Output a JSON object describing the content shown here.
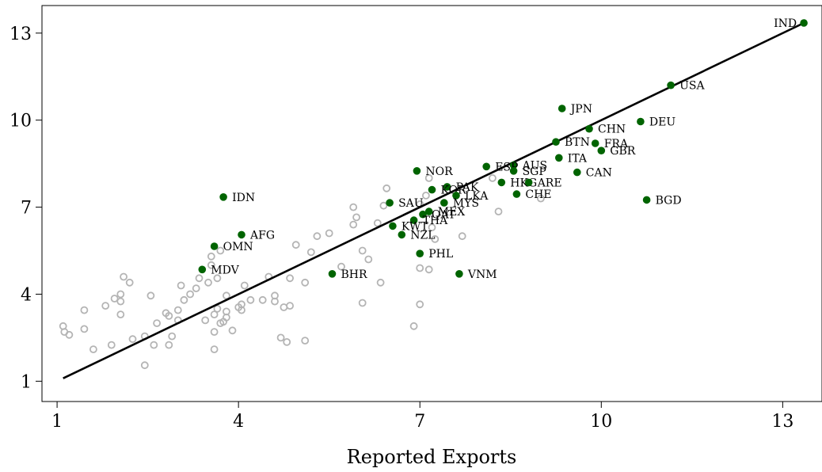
{
  "chart_data": {
    "type": "scatter",
    "title": "",
    "xlabel": "Reported Exports",
    "ylabel": "",
    "xlim": [
      0.75,
      13.65
    ],
    "ylim": [
      0.3,
      13.95
    ],
    "xticks": [
      1,
      4,
      7,
      10,
      13
    ],
    "yticks": [
      1,
      4,
      7,
      10,
      13
    ],
    "grid": false,
    "colors": {
      "highlight": "#006400",
      "background_points": "#b4b4b4",
      "fit_line": "#000000"
    },
    "fit_line": {
      "x": [
        1.1,
        13.35
      ],
      "y": [
        1.1,
        13.35
      ]
    },
    "highlighted": [
      {
        "label": "IND",
        "x": 13.35,
        "y": 13.35,
        "label_pos": "left"
      },
      {
        "label": "USA",
        "x": 11.15,
        "y": 11.2
      },
      {
        "label": "JPN",
        "x": 9.35,
        "y": 10.4
      },
      {
        "label": "DEU",
        "x": 10.65,
        "y": 9.95
      },
      {
        "label": "CHN",
        "x": 9.8,
        "y": 9.7
      },
      {
        "label": "BTN",
        "x": 9.25,
        "y": 9.25
      },
      {
        "label": "FRA",
        "x": 9.9,
        "y": 9.2
      },
      {
        "label": "GBR",
        "x": 10.0,
        "y": 8.95
      },
      {
        "label": "ITA",
        "x": 9.3,
        "y": 8.7
      },
      {
        "label": "AUS",
        "x": 8.55,
        "y": 8.45
      },
      {
        "label": "ESP",
        "x": 8.1,
        "y": 8.4
      },
      {
        "label": "SGP",
        "x": 8.55,
        "y": 8.25
      },
      {
        "label": "CAN",
        "x": 9.6,
        "y": 8.2
      },
      {
        "label": "NOR",
        "x": 6.95,
        "y": 8.25
      },
      {
        "label": "HKG",
        "x": 8.35,
        "y": 7.85
      },
      {
        "label": "ARE",
        "x": 8.8,
        "y": 7.85
      },
      {
        "label": "CHE",
        "x": 8.6,
        "y": 7.45
      },
      {
        "label": "BGD",
        "x": 10.75,
        "y": 7.25
      },
      {
        "label": "PAK",
        "x": 7.45,
        "y": 7.7
      },
      {
        "label": "KOR",
        "x": 7.2,
        "y": 7.6
      },
      {
        "label": "LKA",
        "x": 7.6,
        "y": 7.4
      },
      {
        "label": "SAU",
        "x": 6.5,
        "y": 7.15
      },
      {
        "label": "MYS",
        "x": 7.4,
        "y": 7.15
      },
      {
        "label": "MEX",
        "x": 7.15,
        "y": 6.85
      },
      {
        "label": "QAT",
        "x": 7.05,
        "y": 6.75
      },
      {
        "label": "THA",
        "x": 6.9,
        "y": 6.55
      },
      {
        "label": "KWT",
        "x": 6.55,
        "y": 6.35
      },
      {
        "label": "NZL",
        "x": 6.7,
        "y": 6.05
      },
      {
        "label": "IDN",
        "x": 3.75,
        "y": 7.35
      },
      {
        "label": "AFG",
        "x": 4.05,
        "y": 6.05
      },
      {
        "label": "OMN",
        "x": 3.6,
        "y": 5.65
      },
      {
        "label": "MDV",
        "x": 3.4,
        "y": 4.85
      },
      {
        "label": "PHL",
        "x": 7.0,
        "y": 5.4
      },
      {
        "label": "BHR",
        "x": 5.55,
        "y": 4.7
      },
      {
        "label": "VNM",
        "x": 7.65,
        "y": 4.7
      }
    ],
    "others": [
      [
        1.1,
        2.9
      ],
      [
        1.12,
        2.7
      ],
      [
        1.2,
        2.6
      ],
      [
        1.45,
        3.45
      ],
      [
        1.45,
        2.8
      ],
      [
        1.6,
        2.1
      ],
      [
        1.8,
        3.6
      ],
      [
        1.9,
        2.25
      ],
      [
        1.95,
        3.85
      ],
      [
        2.05,
        4.0
      ],
      [
        2.05,
        3.75
      ],
      [
        2.05,
        3.3
      ],
      [
        2.1,
        4.6
      ],
      [
        2.2,
        4.4
      ],
      [
        2.25,
        2.45
      ],
      [
        2.45,
        2.55
      ],
      [
        2.45,
        1.55
      ],
      [
        2.55,
        3.95
      ],
      [
        2.6,
        2.25
      ],
      [
        2.65,
        3.0
      ],
      [
        2.8,
        3.35
      ],
      [
        2.85,
        3.25
      ],
      [
        2.85,
        2.25
      ],
      [
        2.9,
        2.55
      ],
      [
        3.0,
        3.1
      ],
      [
        3.0,
        3.45
      ],
      [
        3.05,
        4.3
      ],
      [
        3.1,
        3.8
      ],
      [
        3.2,
        4.0
      ],
      [
        3.3,
        4.2
      ],
      [
        3.35,
        4.55
      ],
      [
        3.45,
        3.1
      ],
      [
        3.5,
        4.4
      ],
      [
        3.55,
        5.3
      ],
      [
        3.55,
        5.0
      ],
      [
        3.6,
        2.1
      ],
      [
        3.6,
        3.3
      ],
      [
        3.6,
        2.7
      ],
      [
        3.65,
        3.5
      ],
      [
        3.65,
        4.55
      ],
      [
        3.7,
        3.0
      ],
      [
        3.7,
        5.5
      ],
      [
        3.75,
        3.05
      ],
      [
        3.8,
        3.4
      ],
      [
        3.8,
        3.2
      ],
      [
        3.8,
        3.95
      ],
      [
        3.9,
        2.75
      ],
      [
        4.0,
        3.55
      ],
      [
        4.05,
        3.45
      ],
      [
        4.05,
        3.65
      ],
      [
        4.1,
        4.3
      ],
      [
        4.2,
        3.8
      ],
      [
        4.4,
        3.8
      ],
      [
        4.5,
        4.6
      ],
      [
        4.6,
        3.75
      ],
      [
        4.6,
        3.95
      ],
      [
        4.7,
        2.5
      ],
      [
        4.75,
        3.55
      ],
      [
        4.8,
        2.35
      ],
      [
        4.85,
        4.55
      ],
      [
        4.85,
        3.6
      ],
      [
        4.95,
        5.7
      ],
      [
        5.1,
        4.4
      ],
      [
        5.1,
        2.4
      ],
      [
        5.2,
        5.45
      ],
      [
        5.3,
        6.0
      ],
      [
        5.5,
        6.1
      ],
      [
        5.7,
        4.95
      ],
      [
        5.9,
        7.0
      ],
      [
        5.9,
        6.4
      ],
      [
        5.95,
        6.65
      ],
      [
        6.05,
        5.5
      ],
      [
        6.05,
        3.7
      ],
      [
        6.15,
        5.2
      ],
      [
        6.3,
        6.45
      ],
      [
        6.35,
        4.4
      ],
      [
        6.4,
        7.05
      ],
      [
        6.45,
        7.65
      ],
      [
        6.9,
        2.9
      ],
      [
        7.0,
        3.65
      ],
      [
        7.0,
        4.9
      ],
      [
        7.0,
        7.1
      ],
      [
        7.1,
        7.4
      ],
      [
        7.15,
        4.85
      ],
      [
        7.15,
        8.0
      ],
      [
        7.2,
        6.3
      ],
      [
        7.25,
        5.9
      ],
      [
        7.7,
        6.0
      ],
      [
        8.2,
        8.0
      ],
      [
        8.3,
        6.85
      ],
      [
        9.0,
        7.3
      ]
    ]
  }
}
